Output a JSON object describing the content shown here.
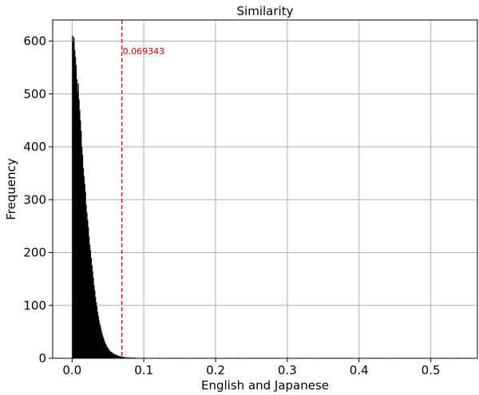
{
  "chart_data": {
    "type": "bar",
    "title": "Similarity",
    "xlabel": "English and Japanese",
    "ylabel": "Frequency",
    "xlim": [
      -0.027,
      0.565
    ],
    "ylim": [
      0,
      640
    ],
    "xticks": [
      0.0,
      0.1,
      0.2,
      0.3,
      0.4,
      0.5
    ],
    "xtick_labels": [
      "0.0",
      "0.1",
      "0.2",
      "0.3",
      "0.4",
      "0.5"
    ],
    "yticks": [
      0,
      100,
      200,
      300,
      400,
      500,
      600
    ],
    "ytick_labels": [
      "0",
      "100",
      "200",
      "300",
      "400",
      "500",
      "600"
    ],
    "grid": true,
    "bar_color": "#000000",
    "grid_color": "#b0b0b0",
    "annotation_color": "#e00000",
    "bin_width": 0.00107,
    "threshold": {
      "x": 0.069343,
      "label": "0.069343",
      "style": "dashed"
    },
    "bins_x": [
      0.0,
      0.001,
      0.002,
      0.003,
      0.004,
      0.005,
      0.006,
      0.007,
      0.008,
      0.009,
      0.01,
      0.011,
      0.012,
      0.013,
      0.014,
      0.015,
      0.016,
      0.017,
      0.018,
      0.019,
      0.02,
      0.021,
      0.022,
      0.023,
      0.024,
      0.025,
      0.026,
      0.027,
      0.028,
      0.029,
      0.03,
      0.031,
      0.032,
      0.033,
      0.034,
      0.035,
      0.036,
      0.037,
      0.038,
      0.039,
      0.04,
      0.041,
      0.042,
      0.043,
      0.044,
      0.045,
      0.046,
      0.047,
      0.048,
      0.049,
      0.05,
      0.051,
      0.052,
      0.053,
      0.054,
      0.055,
      0.056,
      0.057,
      0.058,
      0.059,
      0.06,
      0.061,
      0.062,
      0.063,
      0.064,
      0.065,
      0.066,
      0.067,
      0.068,
      0.069,
      0.07,
      0.072,
      0.074,
      0.076,
      0.078,
      0.08,
      0.083,
      0.086,
      0.09,
      0.095,
      0.1,
      0.11,
      0.12,
      0.15,
      0.2,
      0.23,
      0.3,
      0.33,
      0.4,
      0.45,
      0.537
    ],
    "frequencies": [
      610,
      598,
      607,
      583,
      570,
      555,
      528,
      505,
      520,
      490,
      470,
      450,
      430,
      400,
      385,
      360,
      345,
      330,
      315,
      290,
      275,
      262,
      248,
      230,
      215,
      205,
      190,
      176,
      165,
      152,
      138,
      128,
      116,
      106,
      98,
      88,
      80,
      72,
      65,
      60,
      54,
      48,
      43,
      39,
      35,
      31,
      28,
      25,
      22,
      20,
      18,
      16,
      14,
      13,
      12,
      11,
      10,
      9,
      8,
      8,
      7,
      6,
      6,
      5,
      5,
      4,
      4,
      4,
      3,
      3,
      3,
      3,
      2,
      2,
      2,
      2,
      2,
      2,
      1,
      1,
      1,
      1,
      1,
      1,
      1,
      1,
      1,
      1,
      1,
      1,
      1
    ]
  }
}
